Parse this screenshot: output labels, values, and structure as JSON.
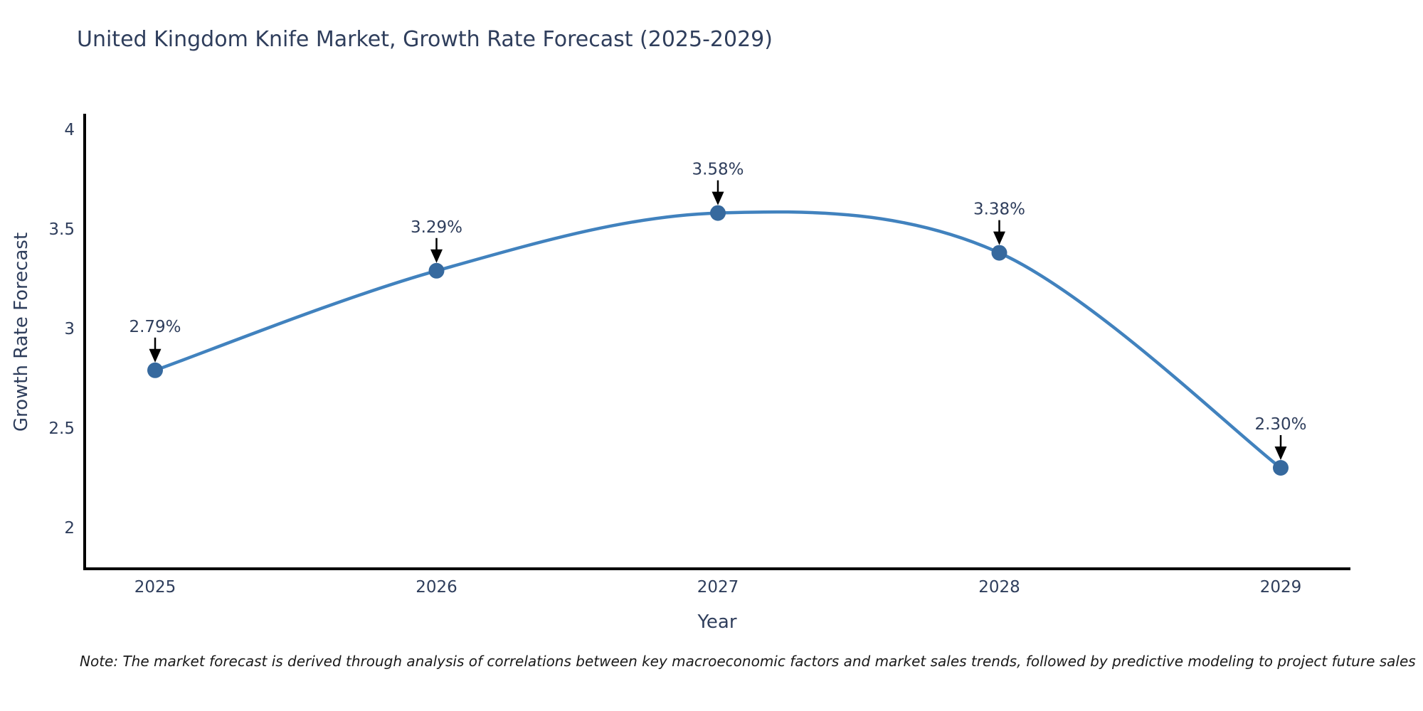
{
  "title": "United Kingdom Knife Market, Growth Rate Forecast (2025-2029)",
  "footnote": "Note: The market forecast is derived through analysis of correlations between key macroeconomic factors and market sales trends, followed by predictive modeling to project future sales",
  "chart_data": {
    "type": "line",
    "title": "United Kingdom Knife Market, Growth Rate Forecast (2025-2029)",
    "xlabel": "Year",
    "ylabel": "Growth Rate Forecast",
    "x": [
      2025,
      2026,
      2027,
      2028,
      2029
    ],
    "values": [
      2.79,
      3.29,
      3.58,
      3.38,
      2.3
    ],
    "point_labels": [
      "2.79%",
      "3.29%",
      "3.58%",
      "3.38%",
      "2.30%"
    ],
    "x_tick_labels": [
      "2025",
      "2026",
      "2027",
      "2028",
      "2029"
    ],
    "y_ticks": [
      2,
      2.5,
      3,
      3.5,
      4
    ],
    "y_tick_labels": [
      "2",
      "2.5",
      "3",
      "3.5",
      "4"
    ],
    "xlim": [
      2024.75,
      2029.25
    ],
    "ylim": [
      1.79,
      4.08
    ],
    "grid": false,
    "legend": "none",
    "line_shape": "spline",
    "colors": {
      "line": "#4182be",
      "marker": "#36699e",
      "axis": "#000000",
      "text": "#2f3e5c",
      "arrow": "#000000"
    }
  }
}
